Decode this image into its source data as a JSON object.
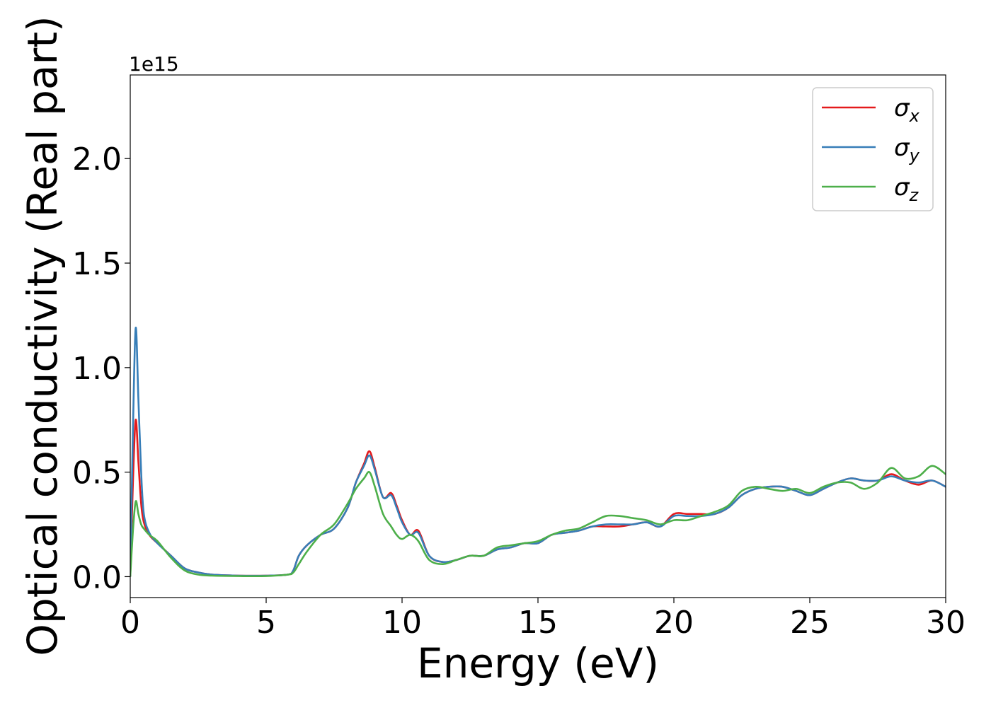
{
  "chart_data": {
    "type": "line",
    "xlabel": "Energy (eV)",
    "ylabel": "Optical conductivity (Real part)",
    "y_offset_label": "1e15",
    "xlim": [
      0,
      30
    ],
    "ylim": [
      -0.1,
      2.4
    ],
    "x_ticks": [
      0,
      5,
      10,
      15,
      20,
      25,
      30
    ],
    "x_tick_labels": [
      "0",
      "5",
      "10",
      "15",
      "20",
      "25",
      "30"
    ],
    "y_ticks": [
      0.0,
      0.5,
      1.0,
      1.5,
      2.0
    ],
    "y_tick_labels": [
      "0.0",
      "0.5",
      "1.0",
      "1.5",
      "2.0"
    ],
    "grid": false,
    "legend_position": "top-right",
    "x": [
      0,
      0.1,
      0.2,
      0.3,
      0.4,
      0.5,
      0.7,
      1.0,
      1.5,
      2.0,
      2.5,
      3.0,
      4.0,
      5.0,
      5.8,
      6.0,
      6.2,
      6.5,
      7.0,
      7.5,
      8.0,
      8.3,
      8.6,
      8.8,
      9.0,
      9.3,
      9.6,
      9.8,
      10.0,
      10.3,
      10.6,
      11.0,
      11.5,
      12.0,
      12.5,
      13.0,
      13.5,
      14.0,
      14.5,
      15.0,
      15.5,
      16.0,
      16.5,
      17.0,
      17.5,
      18.0,
      18.5,
      19.0,
      19.5,
      20.0,
      20.5,
      21.0,
      21.5,
      22.0,
      22.5,
      23.0,
      23.5,
      24.0,
      24.5,
      25.0,
      25.5,
      26.0,
      26.5,
      27.0,
      27.5,
      28.0,
      28.5,
      29.0,
      29.5,
      30.0
    ],
    "series": [
      {
        "name": "x",
        "color": "#e41a1c",
        "values": [
          0,
          0.45,
          0.75,
          0.55,
          0.35,
          0.26,
          0.2,
          0.16,
          0.1,
          0.04,
          0.02,
          0.01,
          0.005,
          0.005,
          0.01,
          0.03,
          0.1,
          0.15,
          0.2,
          0.23,
          0.33,
          0.45,
          0.54,
          0.6,
          0.52,
          0.38,
          0.4,
          0.34,
          0.27,
          0.2,
          0.22,
          0.1,
          0.07,
          0.08,
          0.1,
          0.1,
          0.13,
          0.14,
          0.16,
          0.16,
          0.2,
          0.21,
          0.22,
          0.24,
          0.24,
          0.24,
          0.25,
          0.26,
          0.24,
          0.3,
          0.3,
          0.3,
          0.3,
          0.33,
          0.39,
          0.42,
          0.43,
          0.43,
          0.41,
          0.39,
          0.42,
          0.45,
          0.47,
          0.46,
          0.46,
          0.49,
          0.46,
          0.44,
          0.46,
          0.43
        ]
      },
      {
        "name": "y",
        "color": "#377eb8",
        "values": [
          0,
          0.7,
          1.19,
          0.85,
          0.5,
          0.3,
          0.21,
          0.16,
          0.1,
          0.04,
          0.02,
          0.01,
          0.005,
          0.005,
          0.01,
          0.03,
          0.1,
          0.15,
          0.2,
          0.23,
          0.33,
          0.45,
          0.53,
          0.58,
          0.51,
          0.38,
          0.39,
          0.33,
          0.26,
          0.2,
          0.21,
          0.1,
          0.07,
          0.08,
          0.1,
          0.1,
          0.13,
          0.14,
          0.16,
          0.16,
          0.2,
          0.21,
          0.22,
          0.24,
          0.25,
          0.25,
          0.25,
          0.26,
          0.24,
          0.29,
          0.29,
          0.29,
          0.3,
          0.33,
          0.39,
          0.42,
          0.43,
          0.43,
          0.41,
          0.39,
          0.42,
          0.45,
          0.47,
          0.46,
          0.46,
          0.48,
          0.46,
          0.45,
          0.46,
          0.43
        ]
      },
      {
        "name": "z",
        "color": "#4daf4a",
        "values": [
          0,
          0.22,
          0.36,
          0.3,
          0.25,
          0.23,
          0.2,
          0.17,
          0.09,
          0.03,
          0.01,
          0.005,
          0.003,
          0.003,
          0.01,
          0.02,
          0.06,
          0.12,
          0.2,
          0.25,
          0.35,
          0.42,
          0.47,
          0.5,
          0.43,
          0.3,
          0.24,
          0.2,
          0.18,
          0.2,
          0.17,
          0.08,
          0.06,
          0.08,
          0.1,
          0.1,
          0.14,
          0.15,
          0.16,
          0.17,
          0.2,
          0.22,
          0.23,
          0.26,
          0.29,
          0.29,
          0.28,
          0.27,
          0.25,
          0.27,
          0.27,
          0.29,
          0.31,
          0.34,
          0.41,
          0.43,
          0.42,
          0.41,
          0.42,
          0.4,
          0.43,
          0.45,
          0.45,
          0.42,
          0.45,
          0.52,
          0.47,
          0.48,
          0.53,
          0.49
        ]
      }
    ]
  },
  "legend": {
    "symbol": "σ",
    "items": [
      {
        "sub": "x",
        "color": "#e41a1c"
      },
      {
        "sub": "y",
        "color": "#377eb8"
      },
      {
        "sub": "z",
        "color": "#4daf4a"
      }
    ]
  }
}
